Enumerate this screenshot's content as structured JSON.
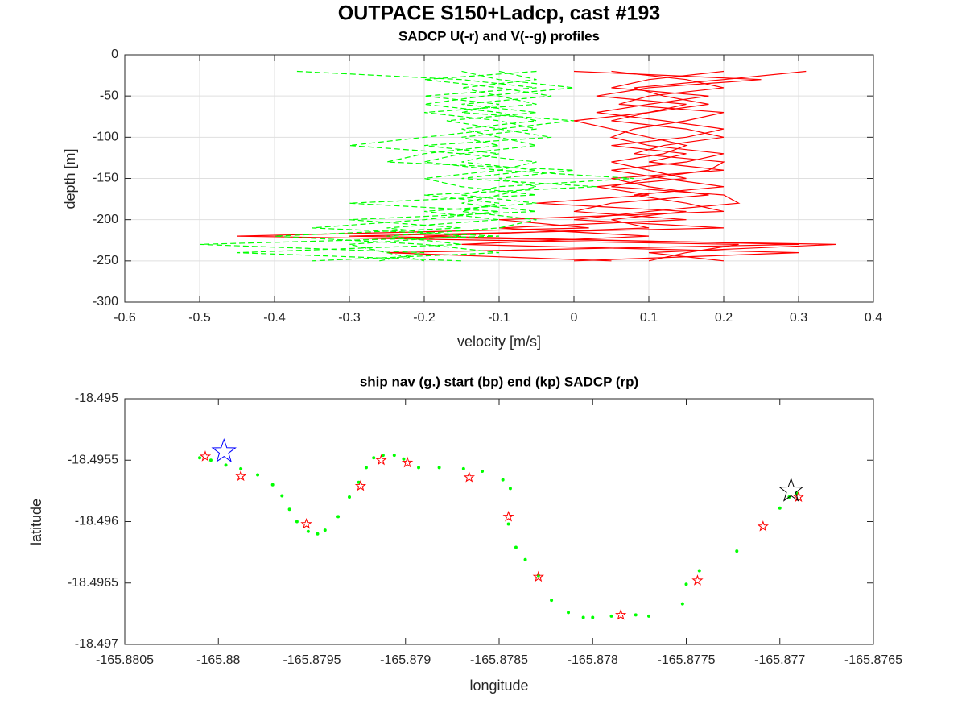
{
  "title": "OUTPACE S150+Ladcp, cast #193",
  "chart_data": [
    {
      "type": "line",
      "title": "SADCP U(-r) and V(--g) profiles",
      "xlabel": "velocity [m/s]",
      "ylabel": "depth [m]",
      "xlim": [
        -0.6,
        0.4
      ],
      "xticks": [
        -0.6,
        -0.5,
        -0.4,
        -0.3,
        -0.2,
        -0.1,
        0,
        0.1,
        0.2,
        0.3,
        0.4
      ],
      "ylim": [
        -300,
        0
      ],
      "yticks": [
        0,
        -50,
        -100,
        -150,
        -200,
        -250,
        -300
      ],
      "grid": true,
      "y": [
        -20,
        -30,
        -40,
        -50,
        -60,
        -70,
        -80,
        -90,
        -100,
        -110,
        -120,
        -130,
        -140,
        -150,
        -160,
        -170,
        -180,
        -190,
        -200,
        -210,
        -220,
        -230,
        -240,
        -250
      ],
      "series": [
        {
          "color": "#ff0000",
          "style": "solid",
          "x": [
            0.31,
            0.2,
            0.08,
            0.12,
            0.18,
            0.1,
            0.05,
            0.15,
            0.2,
            0.12,
            0.08,
            0.2,
            0.18,
            0.1,
            0.05,
            0.2,
            0.22,
            0.1,
            0.0,
            0.2,
            -0.3,
            0.35,
            0.1,
            0.2
          ]
        },
        {
          "color": "#ff0000",
          "style": "solid",
          "x": [
            0.0,
            0.25,
            0.1,
            0.03,
            0.15,
            0.1,
            0.0,
            0.05,
            0.1,
            0.15,
            0.12,
            0.05,
            0.1,
            0.15,
            0.03,
            0.1,
            -0.05,
            0.15,
            0.05,
            0.1,
            -0.2,
            0.3,
            -0.25,
            0.05
          ]
        },
        {
          "color": "#ff0000",
          "style": "solid",
          "x": [
            0.05,
            0.15,
            0.2,
            0.1,
            0.06,
            0.2,
            0.15,
            0.08,
            0.05,
            0.1,
            0.2,
            0.15,
            0.05,
            0.12,
            0.2,
            0.08,
            0.15,
            0.2,
            -0.1,
            0.02,
            -0.45,
            0.22,
            0.15,
            0.1
          ]
        },
        {
          "color": "#ff0000",
          "style": "solid",
          "x": [
            0.2,
            0.1,
            0.05,
            0.18,
            0.1,
            0.03,
            0.12,
            0.2,
            0.15,
            0.05,
            0.15,
            0.1,
            0.2,
            0.05,
            0.1,
            0.18,
            0.05,
            0.0,
            0.15,
            -0.1,
            0.1,
            -0.15,
            0.3,
            0.0
          ]
        },
        {
          "color": "#00ff00",
          "style": "dash",
          "x": [
            -0.37,
            -0.15,
            -0.05,
            -0.2,
            -0.1,
            -0.15,
            0.0,
            -0.1,
            -0.2,
            -0.3,
            -0.15,
            -0.05,
            -0.1,
            -0.2,
            -0.15,
            -0.05,
            -0.3,
            -0.1,
            -0.2,
            -0.35,
            -0.1,
            -0.5,
            -0.2,
            -0.26
          ]
        },
        {
          "color": "#00ff00",
          "style": "dash",
          "x": [
            -0.1,
            -0.05,
            -0.15,
            -0.1,
            -0.05,
            -0.2,
            -0.1,
            -0.05,
            -0.15,
            -0.1,
            -0.2,
            -0.25,
            0.0,
            -0.1,
            -0.05,
            -0.1,
            -0.15,
            -0.05,
            -0.3,
            -0.15,
            -0.4,
            -0.2,
            -0.1,
            -0.35
          ]
        },
        {
          "color": "#00ff00",
          "style": "dash",
          "x": [
            -0.05,
            -0.2,
            -0.1,
            -0.03,
            -0.15,
            -0.05,
            -0.17,
            -0.1,
            -0.03,
            -0.2,
            -0.1,
            -0.15,
            -0.05,
            -0.15,
            0.03,
            -0.2,
            -0.1,
            -0.15,
            -0.05,
            -0.1,
            -0.25,
            -0.15,
            -0.45,
            -0.15
          ]
        },
        {
          "color": "#00ff00",
          "style": "dash",
          "x": [
            -0.15,
            -0.1,
            0.0,
            -0.12,
            -0.2,
            -0.1,
            -0.05,
            -0.15,
            -0.1,
            -0.05,
            -0.15,
            -0.2,
            -0.1,
            0.08,
            -0.1,
            -0.15,
            -0.05,
            -0.2,
            -0.1,
            -0.25,
            -0.15,
            -0.3,
            -0.25,
            -0.2
          ]
        }
      ]
    },
    {
      "type": "scatter",
      "title": "ship nav (g.) start (bp) end (kp) SADCP (rp)",
      "xlabel": "longitude",
      "ylabel": "latitude",
      "xlim": [
        -165.8805,
        -165.8765
      ],
      "xticks": [
        -165.8805,
        -165.88,
        -165.8795,
        -165.879,
        -165.8785,
        -165.878,
        -165.8775,
        -165.877,
        -165.8765
      ],
      "ylim": [
        -18.497,
        -18.495
      ],
      "yticks": [
        -18.497,
        -18.4965,
        -18.496,
        -18.4955,
        -18.495
      ],
      "grid": false,
      "series": [
        {
          "marker": "dot",
          "color": "#00ff00",
          "marker_size": 4,
          "x": [
            -165.8801,
            -165.88004,
            -165.87996,
            -165.87988,
            -165.87979,
            -165.87971,
            -165.87966,
            -165.87962,
            -165.87958,
            -165.87952,
            -165.87947,
            -165.87943,
            -165.87936,
            -165.8793,
            -165.87925,
            -165.87921,
            -165.87917,
            -165.87912,
            -165.87906,
            -165.87901,
            -165.87893,
            -165.87882,
            -165.87869,
            -165.87859,
            -165.87848,
            -165.87844,
            -165.87845,
            -165.87841,
            -165.87836,
            -165.87829,
            -165.87822,
            -165.87813,
            -165.87805,
            -165.878,
            -165.8779,
            -165.87777,
            -165.8777,
            -165.87752,
            -165.8775,
            -165.87743,
            -165.87723,
            -165.877,
            -165.87695,
            -165.87691
          ],
          "values": [
            -18.49548,
            -18.4955,
            -18.49554,
            -18.49557,
            -18.49562,
            -18.4957,
            -18.49579,
            -18.4959,
            -18.496,
            -18.49608,
            -18.4961,
            -18.49607,
            -18.49596,
            -18.4958,
            -18.49568,
            -18.49556,
            -18.49548,
            -18.49546,
            -18.49546,
            -18.49549,
            -18.49556,
            -18.49556,
            -18.49557,
            -18.49559,
            -18.49566,
            -18.49573,
            -18.49602,
            -18.49621,
            -18.49631,
            -18.49644,
            -18.49664,
            -18.49674,
            -18.49678,
            -18.49678,
            -18.49677,
            -18.49676,
            -18.49677,
            -18.49667,
            -18.49651,
            -18.4964,
            -18.49624,
            -18.49589,
            -18.4958,
            -18.49577
          ]
        },
        {
          "marker": "star",
          "color": "#ff0000",
          "marker_size": 6,
          "x": [
            -165.88007,
            -165.87988,
            -165.87953,
            -165.87924,
            -165.87913,
            -165.87899,
            -165.87866,
            -165.87845,
            -165.87829,
            -165.87785,
            -165.87744,
            -165.87709,
            -165.8769
          ],
          "values": [
            -18.49547,
            -18.49563,
            -18.49602,
            -18.49571,
            -18.4955,
            -18.49552,
            -18.49564,
            -18.49596,
            -18.49645,
            -18.49676,
            -18.49648,
            -18.49604,
            -18.4958
          ]
        },
        {
          "marker": "star",
          "color": "#0000ff",
          "marker_size": 15,
          "x": [
            -165.87997
          ],
          "values": [
            -18.49543
          ]
        },
        {
          "marker": "star",
          "color": "#000000",
          "marker_size": 15,
          "x": [
            -165.87694
          ],
          "values": [
            -18.49575
          ]
        }
      ]
    }
  ]
}
